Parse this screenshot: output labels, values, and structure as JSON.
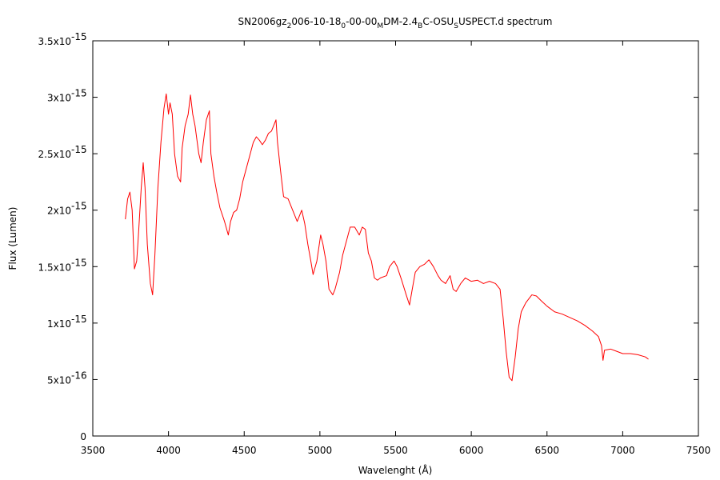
{
  "chart_data": {
    "type": "line",
    "title_parts": [
      {
        "text": "SN2006gz"
      },
      {
        "text": "2",
        "sub": true
      },
      {
        "text": "006-10-18"
      },
      {
        "text": "0",
        "sub": true
      },
      {
        "text": "-00-00"
      },
      {
        "text": "M",
        "sub": true
      },
      {
        "text": "DM-2.4"
      },
      {
        "text": "B",
        "sub": true
      },
      {
        "text": "C-OSU"
      },
      {
        "text": "S",
        "sub": true
      },
      {
        "text": "USPECT.d spectrum"
      }
    ],
    "x_label": "Wavelenght (Å)",
    "y_label": "Flux (Lumen)",
    "xlim": [
      3500,
      7500
    ],
    "xticks": [
      3500,
      4000,
      4500,
      5000,
      5500,
      6000,
      6500,
      7000,
      7500
    ],
    "ylim": [
      0,
      3.5e-15
    ],
    "yticks": [
      0,
      {
        "value": 5e-16,
        "label": "5x10",
        "label_sup": "-16"
      },
      {
        "value": 1e-15,
        "label": "1x10",
        "label_sup": "-15"
      },
      {
        "value": 1.5e-15,
        "label": "1.5x10",
        "label_sup": "-15"
      },
      {
        "value": 2e-15,
        "label": "2x10",
        "label_sup": "-15"
      },
      {
        "value": 2.5e-15,
        "label": "2.5x10",
        "label_sup": "-15"
      },
      {
        "value": 3e-15,
        "label": "3x10",
        "label_sup": "-15"
      },
      {
        "value": 3.5e-15,
        "label": "3.5x10",
        "label_sup": "-15"
      }
    ],
    "grid": false,
    "series": [
      {
        "color": "#ff0000",
        "x": [
          3715,
          3730,
          3745,
          3760,
          3775,
          3790,
          3800,
          3820,
          3833,
          3845,
          3860,
          3880,
          3895,
          3910,
          3930,
          3950,
          3970,
          3985,
          4000,
          4010,
          4025,
          4040,
          4060,
          4080,
          4090,
          4110,
          4130,
          4145,
          4160,
          4175,
          4190,
          4200,
          4215,
          4230,
          4250,
          4270,
          4280,
          4300,
          4320,
          4340,
          4370,
          4395,
          4410,
          4430,
          4450,
          4470,
          4490,
          4510,
          4530,
          4560,
          4580,
          4600,
          4620,
          4640,
          4660,
          4680,
          4710,
          4720,
          4740,
          4760,
          4790,
          4820,
          4850,
          4880,
          4900,
          4920,
          4940,
          4955,
          4980,
          5005,
          5020,
          5040,
          5060,
          5085,
          5100,
          5130,
          5150,
          5180,
          5200,
          5230,
          5260,
          5280,
          5300,
          5320,
          5340,
          5360,
          5380,
          5400,
          5440,
          5460,
          5490,
          5510,
          5540,
          5570,
          5592,
          5610,
          5630,
          5660,
          5690,
          5720,
          5750,
          5780,
          5800,
          5830,
          5860,
          5880,
          5900,
          5930,
          5960,
          6000,
          6040,
          6080,
          6120,
          6160,
          6190,
          6210,
          6230,
          6250,
          6269,
          6290,
          6310,
          6330,
          6360,
          6400,
          6430,
          6460,
          6500,
          6550,
          6600,
          6650,
          6700,
          6750,
          6800,
          6840,
          6860,
          6870,
          6880,
          6920,
          6960,
          7000,
          7050,
          7100,
          7150,
          7170
        ],
        "values": [
          1.92e-15,
          2.1e-15,
          2.16e-15,
          2e-15,
          1.48e-15,
          1.55e-15,
          1.75e-15,
          2.2e-15,
          2.42e-15,
          2.2e-15,
          1.7e-15,
          1.35e-15,
          1.25e-15,
          1.6e-15,
          2.2e-15,
          2.6e-15,
          2.9e-15,
          3.03e-15,
          2.85e-15,
          2.95e-15,
          2.85e-15,
          2.5e-15,
          2.3e-15,
          2.25e-15,
          2.55e-15,
          2.75e-15,
          2.85e-15,
          3.02e-15,
          2.85e-15,
          2.75e-15,
          2.6e-15,
          2.5e-15,
          2.42e-15,
          2.6e-15,
          2.8e-15,
          2.88e-15,
          2.5e-15,
          2.3e-15,
          2.15e-15,
          2.02e-15,
          1.9e-15,
          1.78e-15,
          1.9e-15,
          1.98e-15,
          2e-15,
          2.1e-15,
          2.25e-15,
          2.35e-15,
          2.45e-15,
          2.6e-15,
          2.65e-15,
          2.62e-15,
          2.58e-15,
          2.62e-15,
          2.68e-15,
          2.7e-15,
          2.8e-15,
          2.6e-15,
          2.35e-15,
          2.12e-15,
          2.1e-15,
          2e-15,
          1.9e-15,
          2e-15,
          1.88e-15,
          1.7e-15,
          1.55e-15,
          1.43e-15,
          1.55e-15,
          1.78e-15,
          1.7e-15,
          1.55e-15,
          1.3e-15,
          1.25e-15,
          1.3e-15,
          1.45e-15,
          1.6e-15,
          1.75e-15,
          1.85e-15,
          1.85e-15,
          1.78e-15,
          1.85e-15,
          1.83e-15,
          1.62e-15,
          1.55e-15,
          1.4e-15,
          1.38e-15,
          1.4e-15,
          1.42e-15,
          1.5e-15,
          1.55e-15,
          1.5e-15,
          1.38e-15,
          1.25e-15,
          1.16e-15,
          1.3e-15,
          1.45e-15,
          1.5e-15,
          1.52e-15,
          1.56e-15,
          1.5e-15,
          1.42e-15,
          1.38e-15,
          1.35e-15,
          1.42e-15,
          1.3e-15,
          1.28e-15,
          1.35e-15,
          1.4e-15,
          1.37e-15,
          1.38e-15,
          1.35e-15,
          1.37e-15,
          1.35e-15,
          1.3e-15,
          1.05e-15,
          7.5e-16,
          5.2e-16,
          4.9e-16,
          7e-16,
          9.5e-16,
          1.1e-15,
          1.18e-15,
          1.25e-15,
          1.24e-15,
          1.2e-15,
          1.15e-15,
          1.1e-15,
          1.08e-15,
          1.05e-15,
          1.02e-15,
          9.8e-16,
          9.3e-16,
          8.8e-16,
          8e-16,
          6.7e-16,
          7.6e-16,
          7.7e-16,
          7.5e-16,
          7.3e-16,
          7.3e-16,
          7.2e-16,
          7e-16,
          6.8e-16
        ]
      }
    ]
  }
}
